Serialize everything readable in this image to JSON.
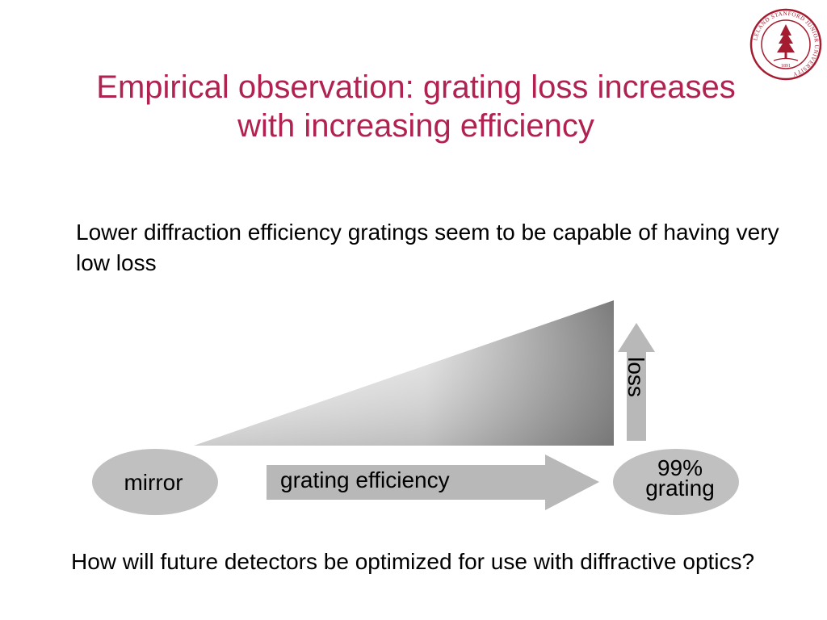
{
  "slide": {
    "title_line1": "Empirical observation: grating loss increases",
    "title_line2": "with increasing efficiency",
    "body_text": "Lower diffraction efficiency gratings seem to be capable of having very low loss",
    "question_text": "How will future detectors be optimized for use with diffractive optics?"
  },
  "diagram": {
    "mirror_label": "mirror",
    "grating_label_line1": "99%",
    "grating_label_line2": "grating",
    "efficiency_arrow_label": "grating efficiency",
    "loss_arrow_label": "loss"
  },
  "logo": {
    "seal_text": "LELAND STANFORD JUNIOR UNIVERSITY",
    "seal_year": "1891"
  },
  "colors": {
    "title": "#b0224f",
    "seal": "#a51c30",
    "shape_fill": "#c0c0c0",
    "arrow_fill": "#b8b8b8",
    "gradient_dark": "#7a7a7a",
    "gradient_light": "#ffffff"
  }
}
